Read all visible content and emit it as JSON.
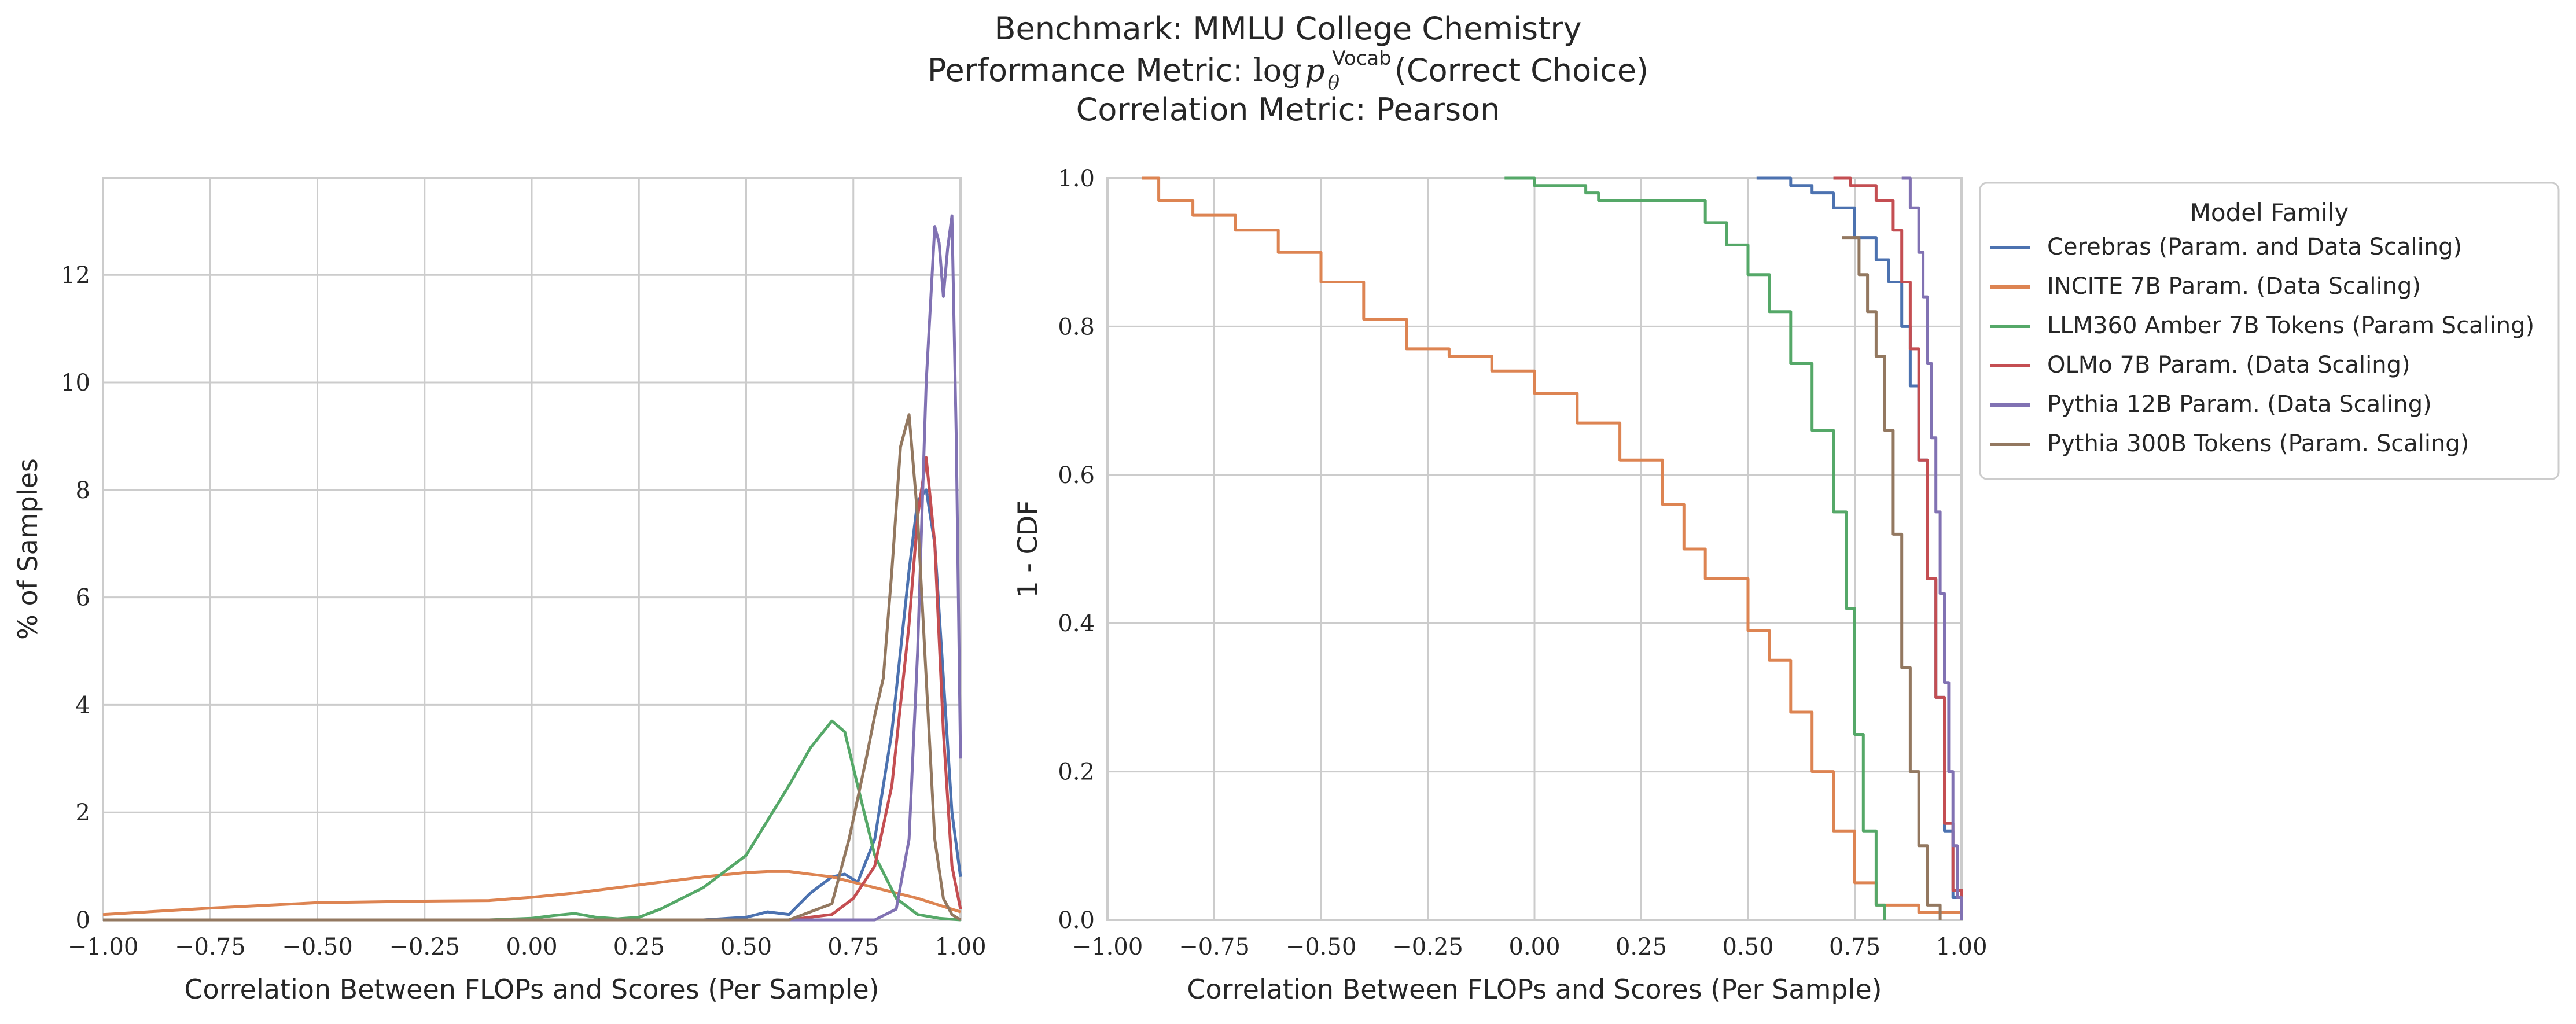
{
  "title": {
    "line1": "Benchmark: MMLU College Chemistry",
    "line2_prefix": "Performance Metric: ",
    "line2_log": "log",
    "line2_p": "p",
    "line2_sub": "θ",
    "line2_sup": "Vocab",
    "line2_arg": "(Correct Choice)",
    "line3": "Correlation Metric: Pearson"
  },
  "legend": {
    "title": "Model Family",
    "location": "outside-right-top"
  },
  "colors": {
    "Cerebras (Param. and Data Scaling)": "#4c72b0",
    "INCITE 7B Param. (Data Scaling)": "#dd8452",
    "LLM360 Amber 7B Tokens (Param Scaling)": "#55a868",
    "OLMo 7B Param. (Data Scaling)": "#c44e52",
    "Pythia 12B Param. (Data Scaling)": "#8172b3",
    "Pythia 300B Tokens (Param. Scaling)": "#937860"
  },
  "chart_data": [
    {
      "type": "line",
      "subtype": "kde",
      "xlabel": "Correlation Between FLOPs and Scores (Per Sample)",
      "ylabel": "% of Samples",
      "xlim": [
        -1.0,
        1.0
      ],
      "ylim": [
        0,
        13.8
      ],
      "xticks": [
        "−1.00",
        "−0.75",
        "−0.50",
        "−0.25",
        "0.00",
        "0.25",
        "0.50",
        "0.75",
        "1.00"
      ],
      "xtick_values": [
        -1.0,
        -0.75,
        -0.5,
        -0.25,
        0.0,
        0.25,
        0.5,
        0.75,
        1.0
      ],
      "yticks": [
        "0",
        "2",
        "4",
        "6",
        "8",
        "10",
        "12"
      ],
      "ytick_values": [
        0,
        2,
        4,
        6,
        8,
        10,
        12
      ],
      "grid": true,
      "series": [
        {
          "name": "Cerebras (Param. and Data Scaling)",
          "x": [
            -1.0,
            0.4,
            0.5,
            0.55,
            0.6,
            0.65,
            0.7,
            0.73,
            0.76,
            0.8,
            0.84,
            0.88,
            0.9,
            0.92,
            0.94,
            0.96,
            0.98,
            1.0
          ],
          "y": [
            0,
            0,
            0.05,
            0.15,
            0.1,
            0.5,
            0.8,
            0.85,
            0.7,
            1.5,
            3.5,
            6.5,
            7.8,
            8.0,
            7.0,
            4.5,
            2.0,
            0.8
          ]
        },
        {
          "name": "INCITE 7B Param. (Data Scaling)",
          "x": [
            -1.0,
            -0.75,
            -0.5,
            -0.25,
            -0.1,
            0.0,
            0.1,
            0.2,
            0.3,
            0.4,
            0.5,
            0.55,
            0.6,
            0.7,
            0.8,
            0.9,
            1.0
          ],
          "y": [
            0.1,
            0.22,
            0.32,
            0.35,
            0.36,
            0.42,
            0.5,
            0.6,
            0.7,
            0.8,
            0.88,
            0.9,
            0.9,
            0.8,
            0.6,
            0.4,
            0.15
          ]
        },
        {
          "name": "LLM360 Amber 7B Tokens (Param Scaling)",
          "x": [
            -1.0,
            -0.1,
            0.0,
            0.05,
            0.1,
            0.15,
            0.2,
            0.25,
            0.3,
            0.4,
            0.5,
            0.6,
            0.65,
            0.7,
            0.73,
            0.76,
            0.8,
            0.85,
            0.9,
            0.95,
            1.0
          ],
          "y": [
            0,
            0,
            0.03,
            0.08,
            0.12,
            0.05,
            0.02,
            0.05,
            0.2,
            0.6,
            1.2,
            2.5,
            3.2,
            3.7,
            3.5,
            2.5,
            1.2,
            0.4,
            0.1,
            0.03,
            0
          ]
        },
        {
          "name": "OLMo 7B Param. (Data Scaling)",
          "x": [
            -1.0,
            0.6,
            0.7,
            0.75,
            0.8,
            0.84,
            0.88,
            0.9,
            0.92,
            0.94,
            0.96,
            0.98,
            1.0
          ],
          "y": [
            0,
            0,
            0.1,
            0.4,
            1.0,
            2.5,
            5.5,
            7.5,
            8.6,
            7.0,
            3.5,
            1.0,
            0.2
          ]
        },
        {
          "name": "Pythia 12B Param. (Data Scaling)",
          "x": [
            -1.0,
            0.8,
            0.85,
            0.88,
            0.9,
            0.92,
            0.94,
            0.95,
            0.96,
            0.97,
            0.98,
            0.99,
            1.0
          ],
          "y": [
            0,
            0,
            0.2,
            1.5,
            5.0,
            10.0,
            12.9,
            12.6,
            11.6,
            12.5,
            13.1,
            9.0,
            3.0
          ]
        },
        {
          "name": "Pythia 300B Tokens (Param. Scaling)",
          "x": [
            -1.0,
            0.6,
            0.7,
            0.74,
            0.78,
            0.8,
            0.82,
            0.84,
            0.86,
            0.88,
            0.9,
            0.92,
            0.94,
            0.96,
            0.98,
            1.0
          ],
          "y": [
            0,
            0,
            0.3,
            1.5,
            3.0,
            3.8,
            4.5,
            6.5,
            8.8,
            9.4,
            7.5,
            4.5,
            1.5,
            0.4,
            0.1,
            0
          ]
        }
      ]
    },
    {
      "type": "line",
      "subtype": "step-ecdf",
      "xlabel": "Correlation Between FLOPs and Scores (Per Sample)",
      "ylabel": "1 - CDF",
      "xlim": [
        -1.0,
        1.0
      ],
      "ylim": [
        0.0,
        1.0
      ],
      "xticks": [
        "−1.00",
        "−0.75",
        "−0.50",
        "−0.25",
        "0.00",
        "0.25",
        "0.50",
        "0.75",
        "1.00"
      ],
      "xtick_values": [
        -1.0,
        -0.75,
        -0.5,
        -0.25,
        0.0,
        0.25,
        0.5,
        0.75,
        1.0
      ],
      "yticks": [
        "0.0",
        "0.2",
        "0.4",
        "0.6",
        "0.8",
        "1.0"
      ],
      "ytick_values": [
        0.0,
        0.2,
        0.4,
        0.6,
        0.8,
        1.0
      ],
      "grid": true,
      "series": [
        {
          "name": "Cerebras (Param. and Data Scaling)",
          "x": [
            0.52,
            0.6,
            0.65,
            0.7,
            0.75,
            0.8,
            0.83,
            0.86,
            0.88,
            0.9,
            0.92,
            0.94,
            0.96,
            0.98,
            1.0
          ],
          "y": [
            1.0,
            0.99,
            0.98,
            0.96,
            0.92,
            0.89,
            0.86,
            0.8,
            0.72,
            0.62,
            0.46,
            0.3,
            0.12,
            0.03,
            0.0
          ]
        },
        {
          "name": "INCITE 7B Param. (Data Scaling)",
          "x": [
            -0.92,
            -0.88,
            -0.8,
            -0.7,
            -0.6,
            -0.5,
            -0.4,
            -0.3,
            -0.2,
            -0.1,
            0.0,
            0.1,
            0.2,
            0.3,
            0.35,
            0.4,
            0.5,
            0.55,
            0.6,
            0.65,
            0.7,
            0.75,
            0.8,
            0.9,
            1.0
          ],
          "y": [
            1.0,
            0.97,
            0.95,
            0.93,
            0.9,
            0.86,
            0.81,
            0.77,
            0.76,
            0.74,
            0.71,
            0.67,
            0.62,
            0.56,
            0.5,
            0.46,
            0.39,
            0.35,
            0.28,
            0.2,
            0.12,
            0.05,
            0.02,
            0.01,
            0.0
          ]
        },
        {
          "name": "LLM360 Amber 7B Tokens (Param Scaling)",
          "x": [
            -0.07,
            0.0,
            0.12,
            0.15,
            0.3,
            0.4,
            0.45,
            0.5,
            0.55,
            0.6,
            0.65,
            0.7,
            0.73,
            0.75,
            0.77,
            0.8,
            0.82
          ],
          "y": [
            1.0,
            0.99,
            0.98,
            0.97,
            0.97,
            0.94,
            0.91,
            0.87,
            0.82,
            0.75,
            0.66,
            0.55,
            0.42,
            0.25,
            0.12,
            0.02,
            0.0
          ]
        },
        {
          "name": "OLMo 7B Param. (Data Scaling)",
          "x": [
            0.7,
            0.74,
            0.8,
            0.84,
            0.86,
            0.88,
            0.9,
            0.92,
            0.94,
            0.96,
            0.98,
            1.0
          ],
          "y": [
            1.0,
            0.99,
            0.97,
            0.93,
            0.86,
            0.77,
            0.62,
            0.46,
            0.3,
            0.13,
            0.04,
            0.0
          ]
        },
        {
          "name": "Pythia 12B Param. (Data Scaling)",
          "x": [
            0.86,
            0.88,
            0.9,
            0.91,
            0.92,
            0.93,
            0.94,
            0.95,
            0.96,
            0.97,
            0.98,
            0.99,
            1.0
          ],
          "y": [
            1.0,
            0.96,
            0.9,
            0.84,
            0.75,
            0.65,
            0.55,
            0.44,
            0.32,
            0.2,
            0.1,
            0.03,
            0.0
          ]
        },
        {
          "name": "Pythia 300B Tokens (Param. Scaling)",
          "x": [
            0.72,
            0.76,
            0.78,
            0.8,
            0.82,
            0.84,
            0.86,
            0.88,
            0.9,
            0.92,
            0.95
          ],
          "y": [
            0.92,
            0.87,
            0.82,
            0.76,
            0.66,
            0.52,
            0.34,
            0.2,
            0.1,
            0.02,
            0.0
          ]
        }
      ]
    }
  ]
}
